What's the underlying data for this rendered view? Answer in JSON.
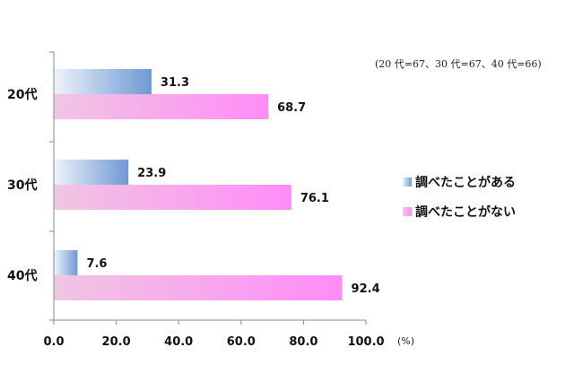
{
  "chart_data": {
    "type": "bar",
    "orientation": "horizontal",
    "categories": [
      "20代",
      "30代",
      "40代"
    ],
    "series": [
      {
        "name": "調べたことがある",
        "values": [
          31.3,
          23.9,
          7.6
        ]
      },
      {
        "name": "調べたことがない",
        "values": [
          68.7,
          76.1,
          92.4
        ]
      }
    ],
    "xlim": [
      0,
      100
    ],
    "xticks": [
      "0.0",
      "20.0",
      "40.0",
      "60.0",
      "80.0",
      "100.0"
    ],
    "x_unit": "(%)",
    "note": "(20 代=67、30 代=67、40 代=66)",
    "legend_position": "right",
    "grid": false,
    "colors": {
      "series1_start": "#eef3fa",
      "series1_end": "#6f98d4",
      "series2_start": "#f0c6e2",
      "series2_end": "#ff8cf8",
      "axis": "#888888"
    }
  }
}
